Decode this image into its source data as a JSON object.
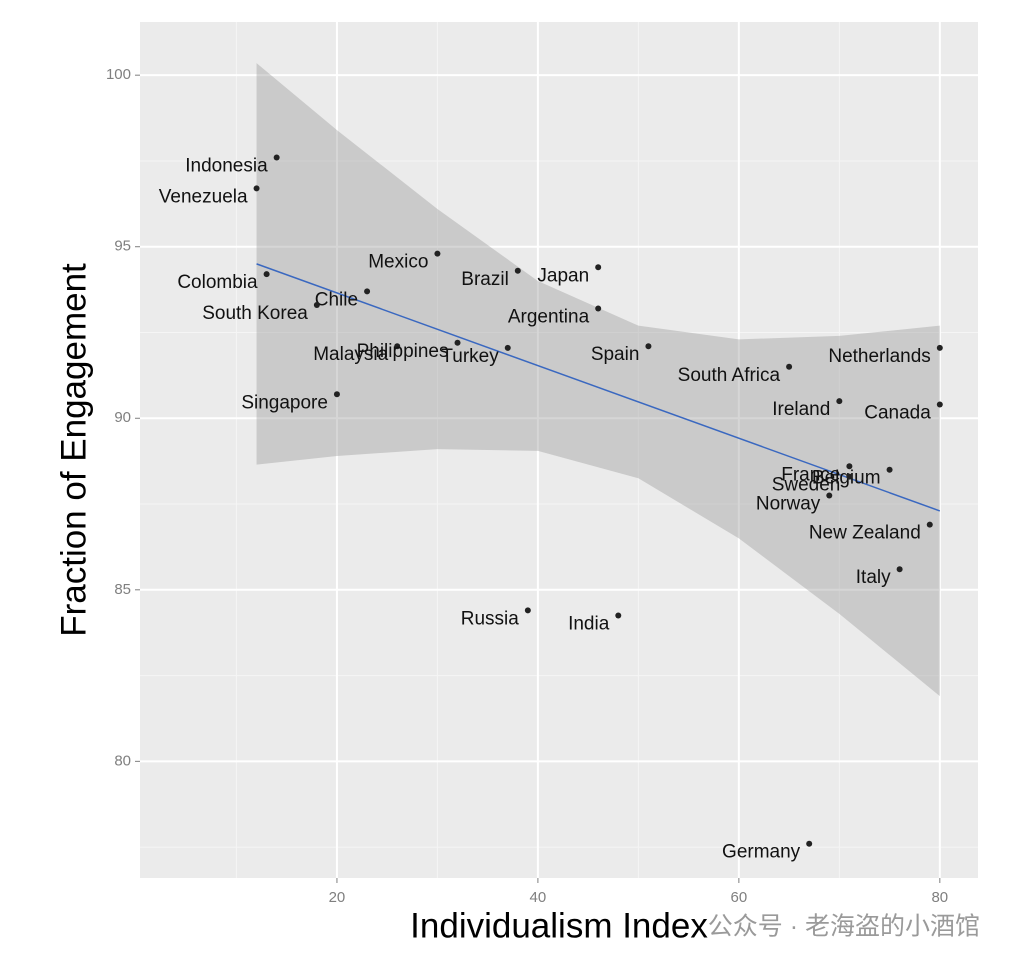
{
  "chart_data": {
    "type": "scatter",
    "x_label": "Individualism Index",
    "y_label": "Fraction of Engagement",
    "watermark": "公众号 · 老海盗的小酒馆",
    "labels": [
      "Indonesia",
      "Venezuela",
      "Colombia",
      "Chile",
      "South Korea",
      "Mexico",
      "Brazil",
      "Japan",
      "Argentina",
      "Malaysia",
      "Philippines",
      "Turkey",
      "Spain",
      "South Africa",
      "Netherlands",
      "Singapore",
      "Ireland",
      "Canada",
      "France",
      "Belgium",
      "Sweden",
      "Norway",
      "New Zealand",
      "Italy",
      "Russia",
      "India",
      "Germany"
    ],
    "x": [
      14,
      12,
      13,
      23,
      18,
      30,
      38,
      46,
      46,
      26,
      32,
      37,
      51,
      65,
      80,
      20,
      70,
      80,
      71,
      75,
      71,
      69,
      79,
      76,
      39,
      48,
      67
    ],
    "values": [
      97.6,
      96.7,
      94.2,
      93.7,
      93.3,
      94.8,
      94.3,
      94.4,
      93.2,
      92.1,
      92.2,
      92.05,
      92.1,
      91.5,
      92.05,
      90.7,
      90.5,
      90.4,
      88.6,
      88.5,
      88.3,
      87.75,
      86.9,
      85.6,
      84.4,
      84.25,
      77.6
    ],
    "point_color": "#222222",
    "fit": {
      "x": [
        12,
        80
      ],
      "values": [
        94.5,
        87.3
      ],
      "color": "#3a68c0"
    },
    "band": {
      "x": [
        12,
        20,
        30,
        40,
        50,
        60,
        70,
        80
      ],
      "upper": [
        100.35,
        98.4,
        96.1,
        94.0,
        92.7,
        92.3,
        92.4,
        92.7
      ],
      "lower": [
        88.65,
        88.9,
        89.1,
        89.05,
        88.25,
        86.5,
        84.3,
        81.9
      ],
      "color": "#999999"
    },
    "xlim": [
      0.4,
      83.8
    ],
    "ylim": [
      76.6,
      101.55
    ],
    "xticks": [
      20,
      40,
      60,
      80
    ],
    "yticks": [
      80,
      85,
      90,
      95,
      100
    ],
    "grid": true,
    "panel_color": "#ebebeb"
  }
}
